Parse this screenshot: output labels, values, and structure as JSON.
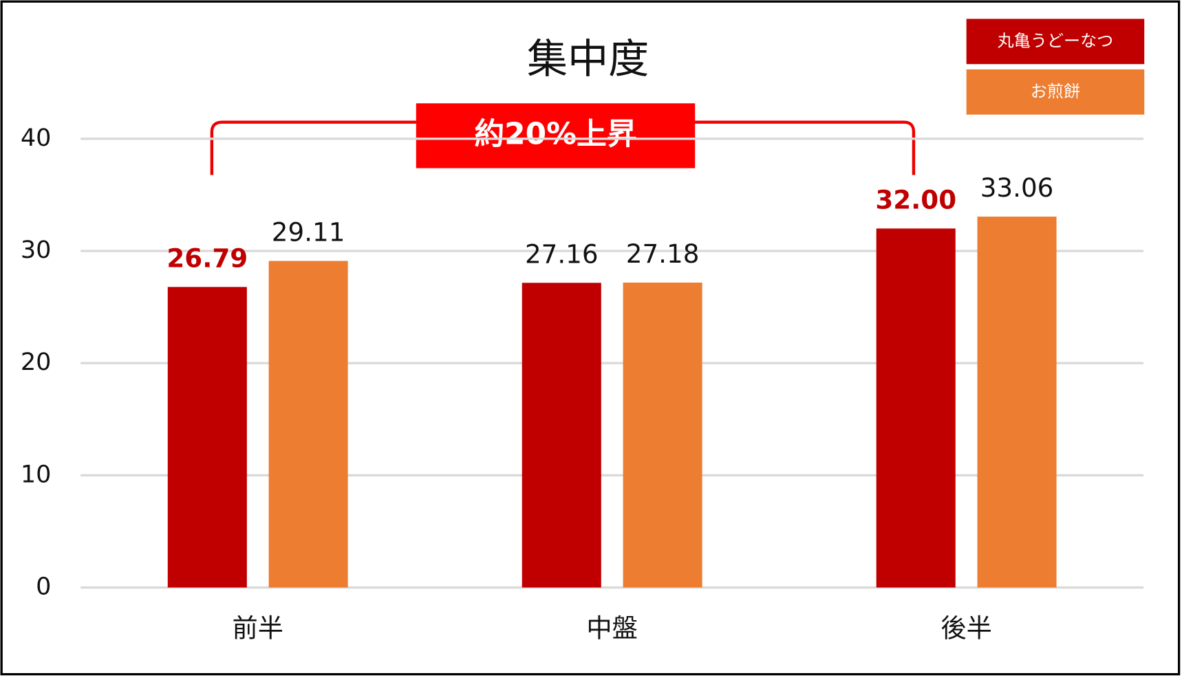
{
  "chart_data": {
    "type": "bar",
    "title": "集中度",
    "categories": [
      "前半",
      "中盤",
      "後半"
    ],
    "series": [
      {
        "name": "丸亀うどーなつ",
        "color": "#c00000",
        "values": [
          26.79,
          27.16,
          32.0
        ],
        "value_labels": [
          "26.79",
          "27.16",
          "32.00"
        ],
        "highlighted": [
          0,
          2
        ]
      },
      {
        "name": "お煎餅",
        "color": "#ed7d31",
        "values": [
          29.11,
          27.18,
          33.06
        ]
      }
    ],
    "ylim": [
      0,
      40
    ],
    "yticks": [
      0,
      10,
      20,
      30,
      40
    ],
    "grid": true,
    "legend": "upper right",
    "annotation": "約20%上昇"
  }
}
